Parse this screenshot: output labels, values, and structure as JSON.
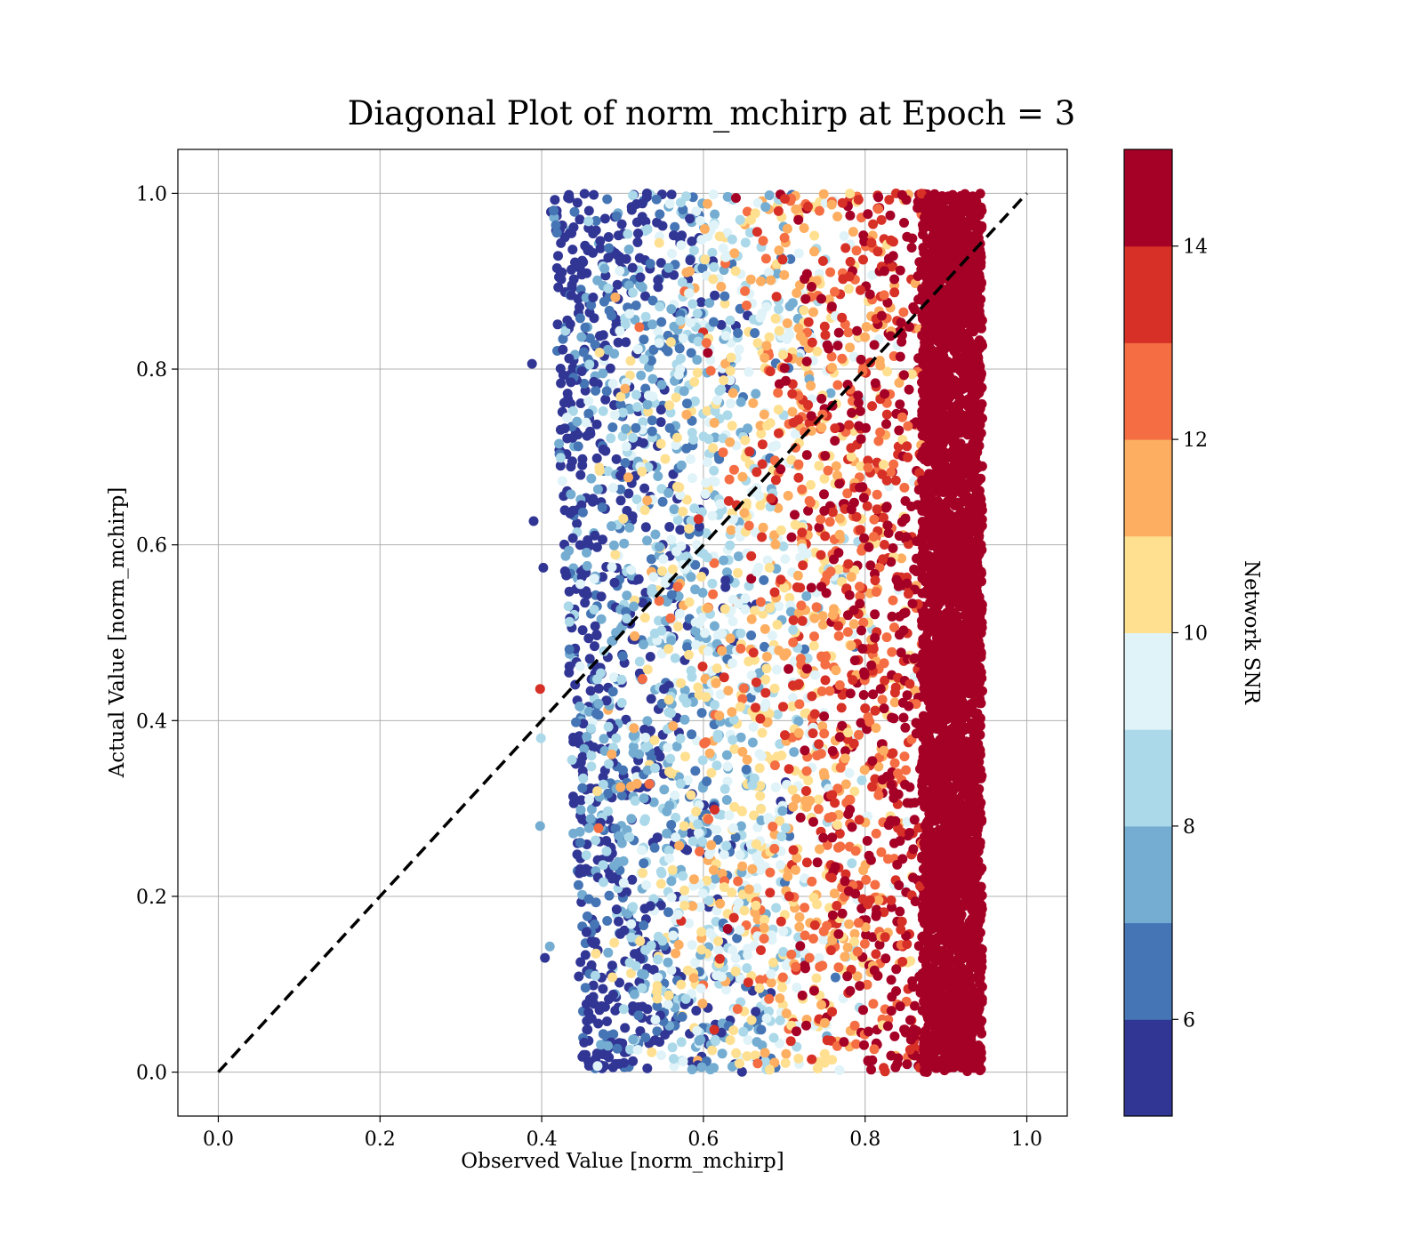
{
  "chart_data": {
    "type": "scatter",
    "title": "Diagonal Plot of norm_mchirp at Epoch = 3",
    "xlabel": "Observed Value [norm_mchirp]",
    "ylabel": "Actual Value [norm_mchirp]",
    "xlim": [
      -0.05,
      1.05
    ],
    "ylim": [
      -0.05,
      1.05
    ],
    "xticks": [
      "0.0",
      "0.2",
      "0.4",
      "0.6",
      "0.8",
      "1.0"
    ],
    "yticks": [
      "0.0",
      "0.2",
      "0.4",
      "0.6",
      "0.8",
      "1.0"
    ],
    "grid": true,
    "reference_line": {
      "style": "dashed",
      "color": "#000000",
      "from": [
        0,
        0
      ],
      "to": [
        1,
        1
      ]
    },
    "colorbar": {
      "label": "Network SNR",
      "min": 5,
      "max": 15,
      "ticks": [
        "6",
        "8",
        "10",
        "12",
        "14"
      ],
      "tick_values": [
        6,
        8,
        10,
        12,
        14
      ],
      "colors": [
        "#313695",
        "#4575b4",
        "#74add1",
        "#abd9e9",
        "#e0f3f8",
        "#fee090",
        "#fdae61",
        "#f46d43",
        "#d73027",
        "#a50026"
      ],
      "colormap": "RdYlBu_r"
    },
    "points_description_ranges": {
      "x_range": [
        0.39,
        0.95
      ],
      "y_range": [
        0.0,
        1.0
      ]
    }
  }
}
